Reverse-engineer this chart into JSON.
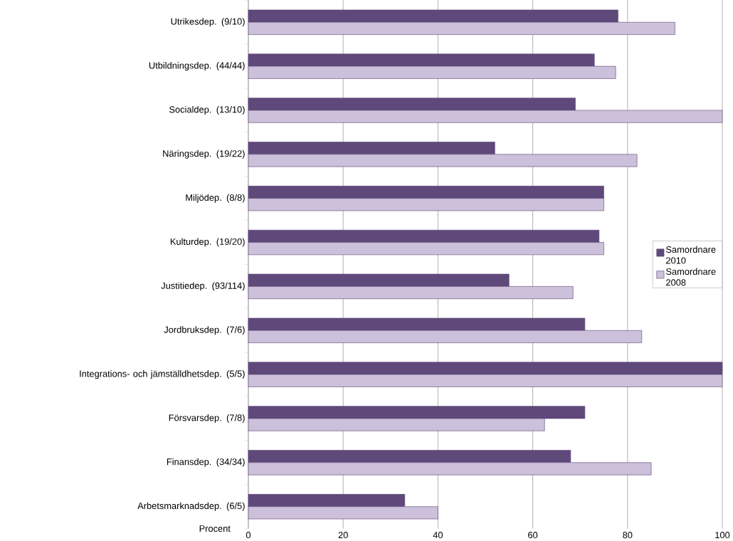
{
  "chart_data": {
    "type": "bar",
    "orientation": "horizontal",
    "xlabel": "Procent",
    "categories": [
      "Utrikesdep. (9/10)",
      "Utbildningsdep. (44/44)",
      "Socialdep. (13/10)",
      "Näringsdep. (19/22)",
      "Miljödep. (8/8)",
      "Kulturdep. (19/20)",
      "Justitiedep. (93/114)",
      "Jordbruksdep. (7/6)",
      "Integrations- och jämställdhetsdep. (5/5)",
      "Försvarsdep. (7/8)",
      "Finansdep. (34/34)",
      "Arbetsmarknadsdep. (6/5)"
    ],
    "series": [
      {
        "name": "Samordnare 2010",
        "color": "#5f497a",
        "values": [
          78,
          73,
          69,
          52,
          75,
          74,
          55,
          71,
          100,
          71,
          68,
          33
        ]
      },
      {
        "name": "Samordnare 2008",
        "color": "#ccc0da",
        "values": [
          90,
          77.5,
          100,
          82,
          75,
          75,
          68.5,
          83,
          100,
          62.5,
          85,
          40
        ]
      }
    ],
    "xlim": [
      0,
      100
    ],
    "xticks": [
      0,
      20,
      40,
      60,
      80,
      100
    ],
    "grid": "x",
    "legend": "right"
  }
}
